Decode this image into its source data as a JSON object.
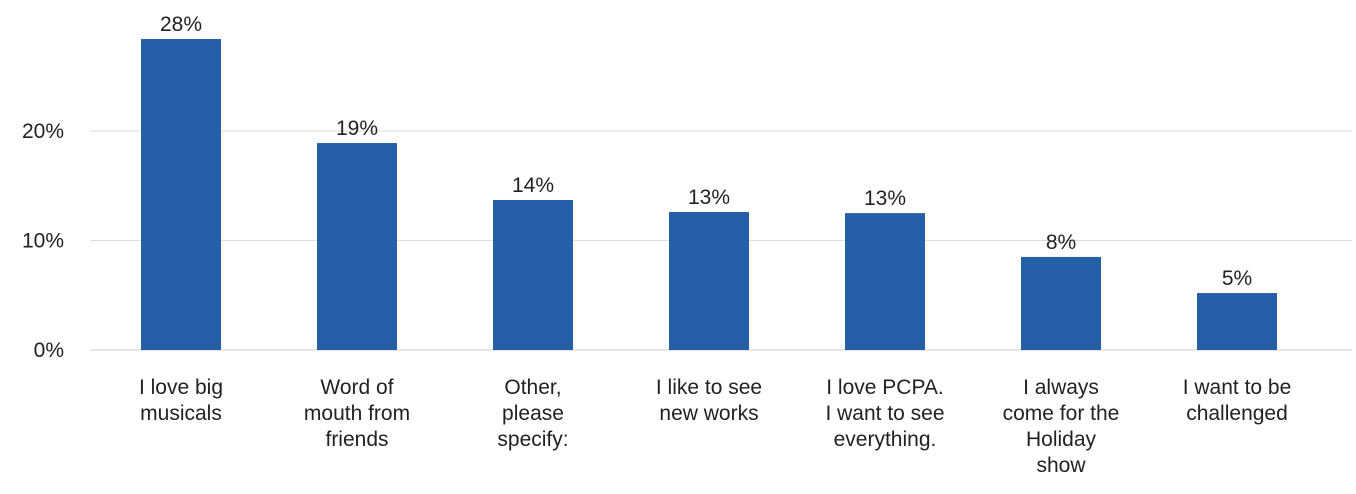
{
  "chart_data": {
    "type": "bar",
    "categories": [
      [
        "I love big",
        "musicals"
      ],
      [
        "Word of",
        "mouth from",
        "friends"
      ],
      [
        "Other,",
        "please",
        "specify:"
      ],
      [
        "I like to see",
        "new works"
      ],
      [
        "I love PCPA.",
        "I want to see",
        "everything."
      ],
      [
        "I always",
        "come for the",
        "Holiday",
        "show"
      ],
      [
        "I want to be",
        "challenged"
      ]
    ],
    "values": [
      28.4,
      18.9,
      13.7,
      12.6,
      12.5,
      8.5,
      5.2
    ],
    "data_labels": [
      "28%",
      "19%",
      "14%",
      "13%",
      "13%",
      "8%",
      "5%"
    ],
    "y_ticks": [
      {
        "value": 0,
        "label": "0%"
      },
      {
        "value": 10,
        "label": "10%"
      },
      {
        "value": 20,
        "label": "20%"
      }
    ],
    "ylim": [
      0,
      30
    ],
    "grid": true,
    "legend": "none",
    "colors": {
      "bar": "#245fa8",
      "grid": "#dddddd",
      "text": "#222222"
    }
  }
}
